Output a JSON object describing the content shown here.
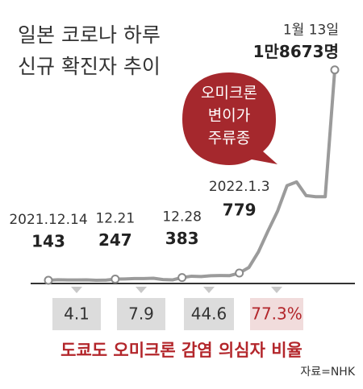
{
  "chart_data": {
    "type": "line",
    "title": [
      "일본 코로나 하루",
      "신규 확진자 추이"
    ],
    "categories": [
      "2021.12.14",
      null,
      null,
      null,
      null,
      null,
      null,
      "12.21",
      null,
      null,
      null,
      null,
      null,
      null,
      "12.28",
      null,
      null,
      null,
      null,
      null,
      "2022.1.3",
      null,
      null,
      null,
      null,
      null,
      null,
      null,
      null,
      null,
      "1월 13일"
    ],
    "values": [
      143,
      185,
      172,
      171,
      179,
      142,
      152,
      247,
      261,
      293,
      295,
      320,
      204,
      175,
      383,
      500,
      469,
      542,
      555,
      553,
      779,
      1265,
      2638,
      4475,
      6214,
      8480,
      8800,
      7600,
      7500,
      7500,
      18673
    ],
    "value_labels": [
      "143",
      null,
      null,
      null,
      null,
      null,
      null,
      "247",
      null,
      null,
      null,
      null,
      null,
      null,
      "383",
      null,
      null,
      null,
      null,
      null,
      "779",
      null,
      null,
      null,
      null,
      null,
      null,
      null,
      null,
      null,
      "1만8673명"
    ],
    "color": "#9b9b9b",
    "ylim": [
      0,
      20000
    ],
    "callout": [
      "오미크론",
      "변이가",
      "주류종"
    ],
    "callout_color": "#a5282d",
    "ratio": {
      "title": "도쿄도 오미크론 감염 의심자 비율",
      "values": [
        4.1,
        7.9,
        44.6,
        77.3
      ],
      "value_labels": [
        "4.1",
        "7.9",
        "44.6",
        "77.3%"
      ],
      "colors": [
        "#dcdcdc",
        "#dcdcdc",
        "#dcdcdc",
        "#f1dcdc"
      ],
      "text_colors": [
        "#333333",
        "#333333",
        "#333333",
        "#b3262b"
      ]
    },
    "source": "자료=NHK"
  }
}
